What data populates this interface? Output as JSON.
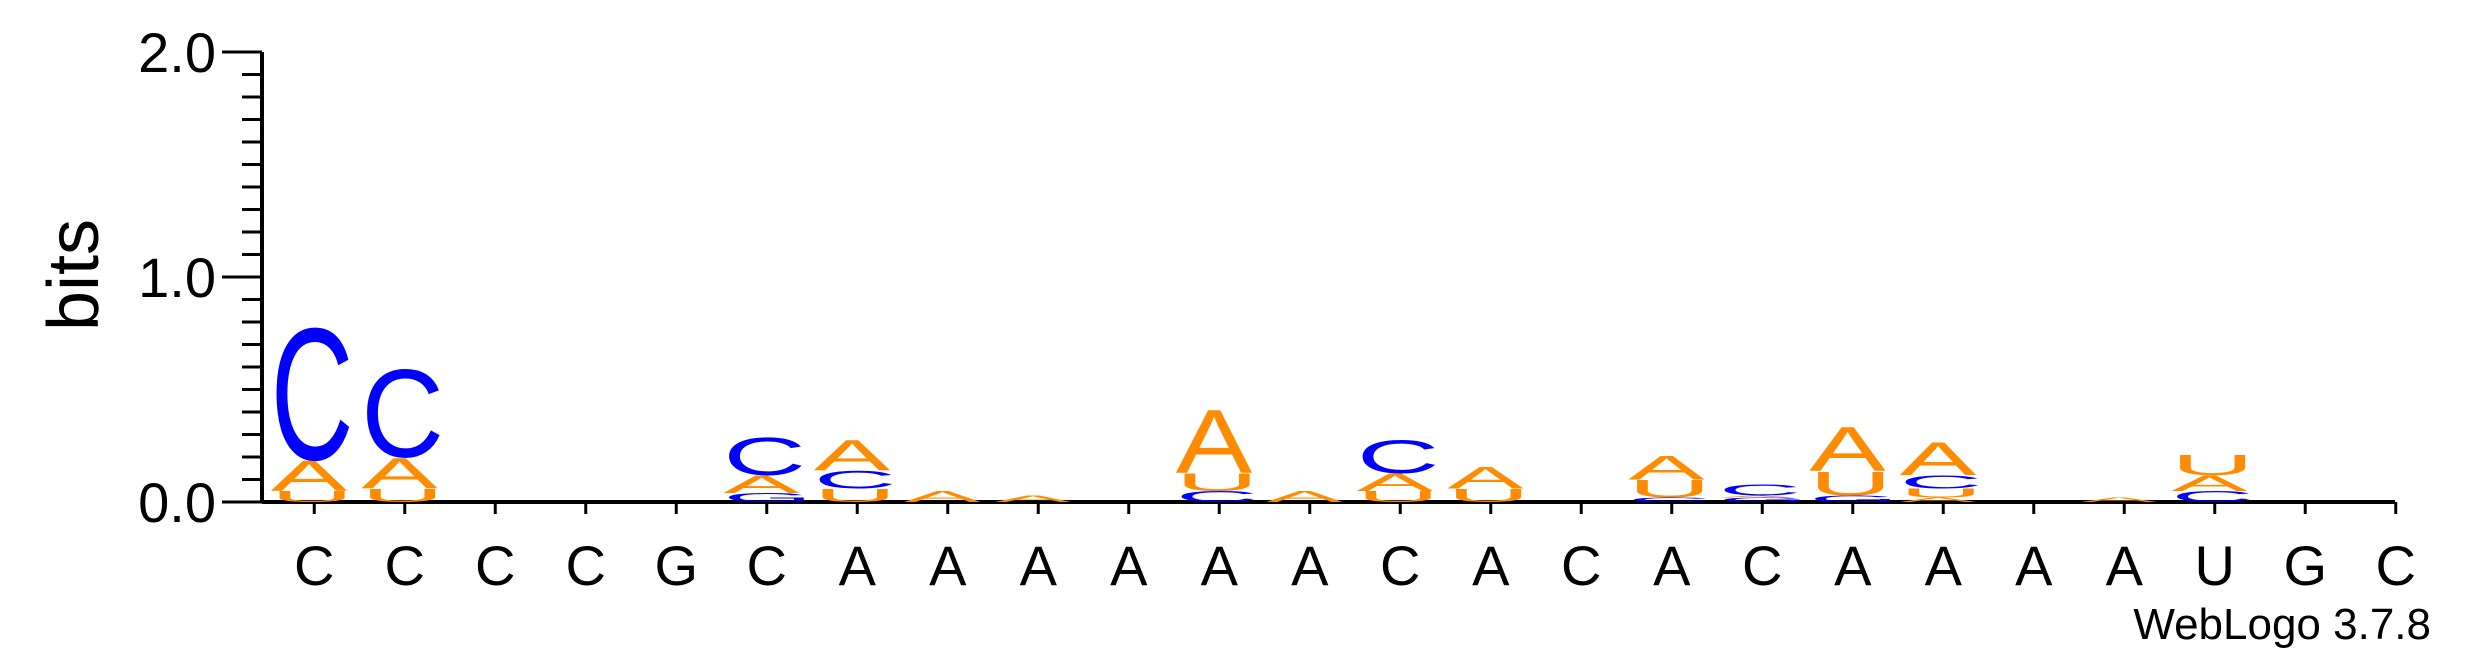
{
  "chart_data": {
    "type": "sequence-logo",
    "ylabel": "bits",
    "ylim": [
      0,
      2.0
    ],
    "yticks": [
      {
        "value": 0.0,
        "label": "0.0"
      },
      {
        "value": 1.0,
        "label": "1.0"
      },
      {
        "value": 2.0,
        "label": "2.0"
      }
    ],
    "yminor_step": 0.1,
    "colors": {
      "A": "#FF8C00",
      "U": "#FF8C00",
      "C": "#0000FF",
      "G": "#0000FF"
    },
    "positions": [
      {
        "label": "C",
        "stack": [
          {
            "letter": "U",
            "height": 0.05
          },
          {
            "letter": "A",
            "height": 0.14
          },
          {
            "letter": "C",
            "height": 0.6
          }
        ]
      },
      {
        "label": "C",
        "stack": [
          {
            "letter": "U",
            "height": 0.06
          },
          {
            "letter": "A",
            "height": 0.14
          },
          {
            "letter": "C",
            "height": 0.4
          }
        ]
      },
      {
        "label": "C",
        "stack": []
      },
      {
        "label": "C",
        "stack": []
      },
      {
        "label": "G",
        "stack": []
      },
      {
        "label": "C",
        "stack": [
          {
            "letter": "G",
            "height": 0.04
          },
          {
            "letter": "A",
            "height": 0.08
          },
          {
            "letter": "C",
            "height": 0.17
          }
        ]
      },
      {
        "label": "A",
        "stack": [
          {
            "letter": "U",
            "height": 0.06
          },
          {
            "letter": "C",
            "height": 0.08
          },
          {
            "letter": "A",
            "height": 0.14
          }
        ]
      },
      {
        "label": "A",
        "stack": [
          {
            "letter": "A",
            "height": 0.05
          }
        ]
      },
      {
        "label": "A",
        "stack": [
          {
            "letter": "A",
            "height": 0.03
          }
        ]
      },
      {
        "label": "A",
        "stack": []
      },
      {
        "label": "A",
        "stack": [
          {
            "letter": "C",
            "height": 0.05
          },
          {
            "letter": "U",
            "height": 0.08
          },
          {
            "letter": "A",
            "height": 0.29
          }
        ]
      },
      {
        "label": "A",
        "stack": [
          {
            "letter": "A",
            "height": 0.05
          }
        ]
      },
      {
        "label": "C",
        "stack": [
          {
            "letter": "U",
            "height": 0.05
          },
          {
            "letter": "A",
            "height": 0.08
          },
          {
            "letter": "C",
            "height": 0.15
          }
        ]
      },
      {
        "label": "A",
        "stack": [
          {
            "letter": "U",
            "height": 0.06
          },
          {
            "letter": "A",
            "height": 0.1
          }
        ]
      },
      {
        "label": "C",
        "stack": []
      },
      {
        "label": "A",
        "stack": [
          {
            "letter": "C",
            "height": 0.02
          },
          {
            "letter": "U",
            "height": 0.08
          },
          {
            "letter": "A",
            "height": 0.11
          }
        ]
      },
      {
        "label": "C",
        "stack": [
          {
            "letter": "G",
            "height": 0.02
          },
          {
            "letter": "A",
            "height": 0.01
          },
          {
            "letter": "C",
            "height": 0.05
          }
        ]
      },
      {
        "label": "A",
        "stack": [
          {
            "letter": "G",
            "height": 0.03
          },
          {
            "letter": "U",
            "height": 0.11
          },
          {
            "letter": "A",
            "height": 0.2
          }
        ]
      },
      {
        "label": "A",
        "stack": [
          {
            "letter": "A",
            "height": 0.02
          },
          {
            "letter": "U",
            "height": 0.04
          },
          {
            "letter": "C",
            "height": 0.06
          },
          {
            "letter": "A",
            "height": 0.15
          }
        ]
      },
      {
        "label": "A",
        "stack": []
      },
      {
        "label": "A",
        "stack": [
          {
            "letter": "A",
            "height": 0.02
          }
        ]
      },
      {
        "label": "U",
        "stack": [
          {
            "letter": "C",
            "height": 0.05
          },
          {
            "letter": "A",
            "height": 0.07
          },
          {
            "letter": "U",
            "height": 0.09
          }
        ]
      },
      {
        "label": "G",
        "stack": []
      },
      {
        "label": "C",
        "stack": []
      }
    ]
  },
  "footer": {
    "credit": "WebLogo 3.7.8"
  }
}
